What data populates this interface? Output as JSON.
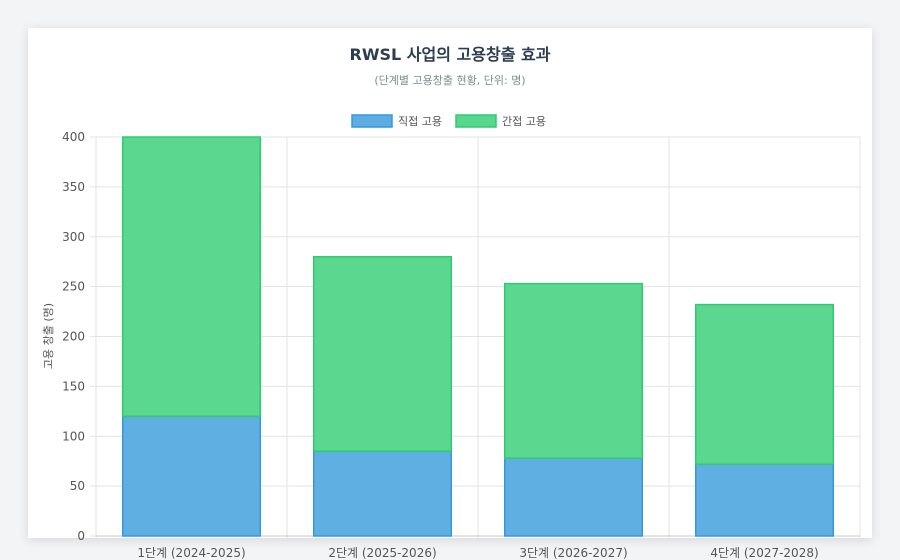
{
  "title": "RWSL 사업의 고용창출 효과",
  "subtitle": "(단계별 고용창출 현황, 단위: 명)",
  "colors": {
    "direct_fill": "#5dade2",
    "direct_stroke": "#3498db",
    "indirect_fill": "#58d68d",
    "indirect_stroke": "#2ecc71"
  },
  "chart_data": {
    "type": "bar",
    "stacked": true,
    "categories": [
      "1단계 (2024-2025)",
      "2단계 (2025-2026)",
      "3단계 (2026-2027)",
      "4단계 (2027-2028)"
    ],
    "series": [
      {
        "name": "직접 고용",
        "values": [
          120,
          85,
          78,
          72
        ]
      },
      {
        "name": "간접 고용",
        "values": [
          280,
          195,
          175,
          160
        ]
      }
    ],
    "ylabel": "고용 창출 (명)",
    "xlabel": "",
    "ylim": [
      0,
      400
    ],
    "yticks": [
      0,
      50,
      100,
      150,
      200,
      250,
      300,
      350,
      400
    ],
    "grid": true,
    "legend": "top-center"
  }
}
